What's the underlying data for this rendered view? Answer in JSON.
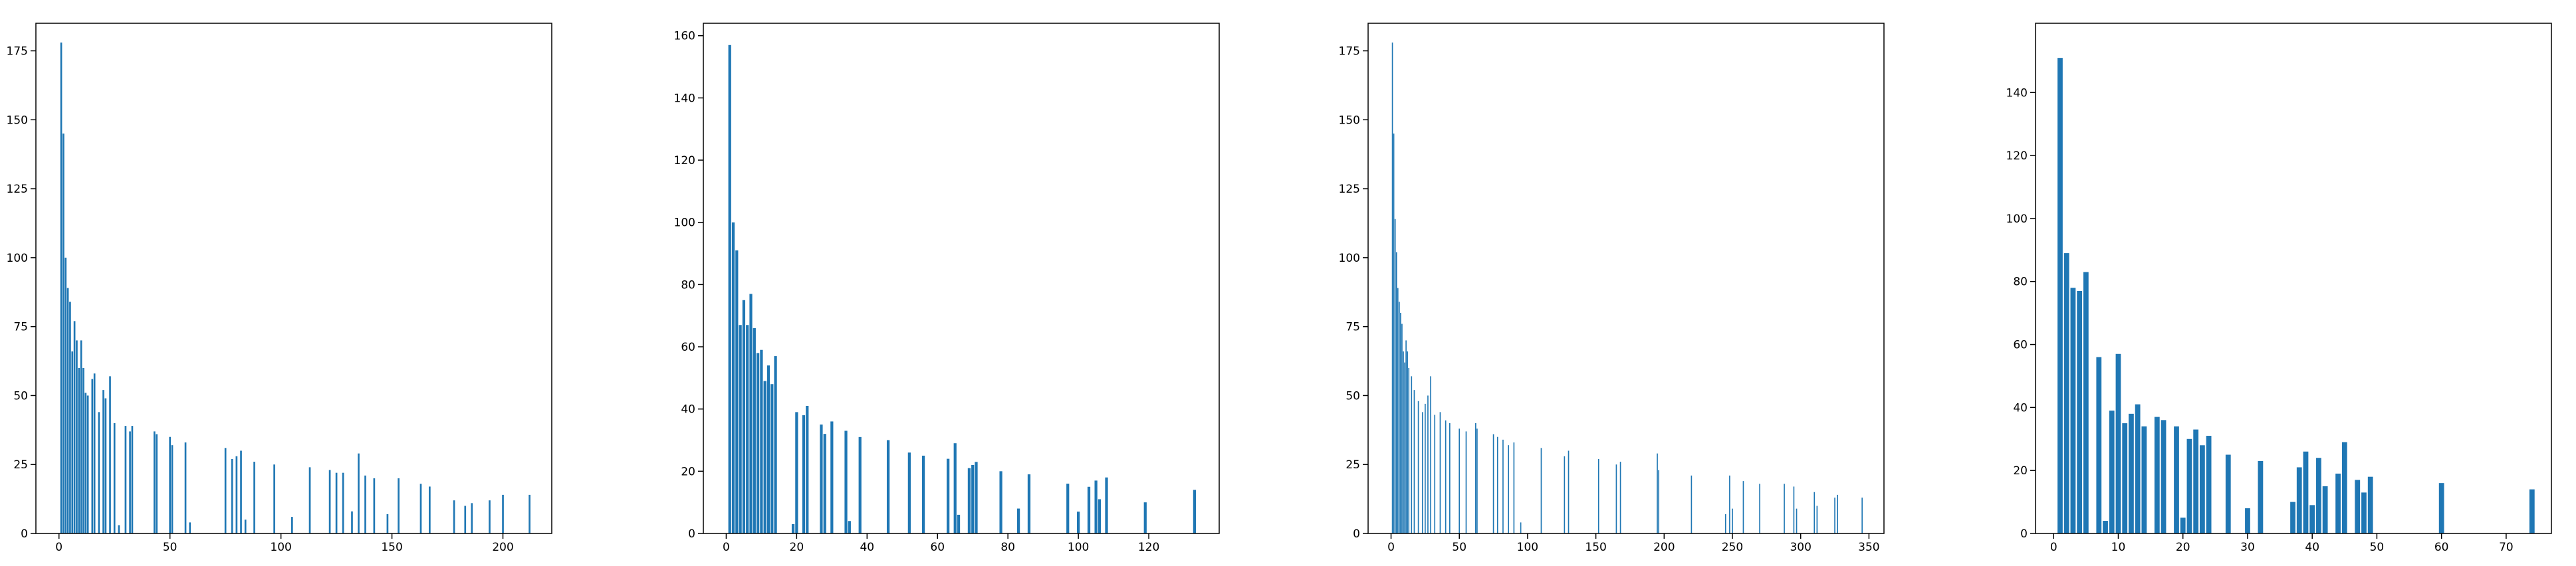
{
  "chart_data": [
    {
      "type": "bar",
      "color": "#1f77b4",
      "x": [
        1,
        2,
        3,
        4,
        5,
        6,
        7,
        8,
        9,
        10,
        11,
        12,
        13,
        15,
        16,
        18,
        20,
        21,
        23,
        25,
        27,
        30,
        32,
        33,
        43,
        44,
        50,
        51,
        57,
        59,
        75,
        78,
        80,
        82,
        84,
        88,
        97,
        105,
        113,
        122,
        125,
        128,
        132,
        135,
        138,
        142,
        148,
        153,
        163,
        167,
        178,
        183,
        186,
        194,
        200,
        212
      ],
      "values": [
        178,
        145,
        100,
        89,
        84,
        66,
        77,
        70,
        60,
        70,
        60,
        51,
        50,
        56,
        58,
        44,
        52,
        49,
        57,
        40,
        3,
        39,
        37,
        39,
        37,
        36,
        35,
        32,
        33,
        4,
        31,
        27,
        28,
        30,
        5,
        26,
        25,
        6,
        24,
        23,
        22,
        22,
        8,
        29,
        21,
        20,
        7,
        20,
        18,
        17,
        12,
        10,
        11,
        12,
        14,
        14
      ],
      "xlim": [
        -10.4,
        222
      ],
      "ylim": [
        0,
        185
      ],
      "xticks": [
        0,
        50,
        100,
        150,
        200
      ],
      "yticks": [
        0,
        25,
        50,
        75,
        100,
        125,
        150,
        175
      ]
    },
    {
      "type": "bar",
      "color": "#1f77b4",
      "x": [
        1,
        2,
        3,
        4,
        5,
        6,
        7,
        8,
        9,
        10,
        11,
        12,
        13,
        14,
        19,
        20,
        22,
        23,
        27,
        28,
        30,
        34,
        35,
        38,
        46,
        52,
        56,
        63,
        65,
        66,
        69,
        70,
        71,
        78,
        83,
        86,
        97,
        100,
        103,
        105,
        106,
        108,
        119,
        133
      ],
      "values": [
        157,
        100,
        91,
        67,
        75,
        67,
        77,
        66,
        58,
        59,
        49,
        54,
        48,
        57,
        3,
        39,
        38,
        41,
        35,
        32,
        36,
        33,
        4,
        31,
        30,
        26,
        25,
        24,
        29,
        6,
        21,
        22,
        23,
        20,
        8,
        19,
        16,
        7,
        15,
        17,
        11,
        18,
        10,
        14
      ],
      "xlim": [
        -6.5,
        140
      ],
      "ylim": [
        0,
        164
      ],
      "xticks": [
        0,
        20,
        40,
        60,
        80,
        100,
        120
      ],
      "yticks": [
        0,
        20,
        40,
        60,
        80,
        100,
        120,
        140,
        160
      ]
    },
    {
      "type": "bar",
      "color": "#1f77b4",
      "x": [
        1,
        2,
        3,
        4,
        5,
        6,
        7,
        8,
        9,
        10,
        11,
        12,
        13,
        15,
        17,
        20,
        23,
        25,
        27,
        29,
        32,
        36,
        40,
        43,
        50,
        55,
        62,
        63,
        75,
        78,
        82,
        86,
        90,
        95,
        110,
        127,
        130,
        152,
        165,
        168,
        195,
        196,
        220,
        245,
        248,
        250,
        258,
        270,
        288,
        295,
        297,
        310,
        312,
        325,
        327,
        345
      ],
      "values": [
        178,
        145,
        114,
        102,
        89,
        84,
        80,
        76,
        66,
        62,
        70,
        66,
        60,
        57,
        52,
        48,
        44,
        47,
        50,
        57,
        43,
        44,
        41,
        40,
        38,
        37,
        40,
        38,
        36,
        35,
        34,
        32,
        33,
        4,
        31,
        28,
        30,
        27,
        25,
        26,
        29,
        23,
        21,
        7,
        21,
        9,
        19,
        18,
        18,
        17,
        9,
        15,
        10,
        13,
        14,
        13
      ],
      "xlim": [
        -16.8,
        361
      ],
      "ylim": [
        0,
        185
      ],
      "xticks": [
        0,
        50,
        100,
        150,
        200,
        250,
        300,
        350
      ],
      "yticks": [
        0,
        25,
        50,
        75,
        100,
        125,
        150,
        175
      ]
    },
    {
      "type": "bar",
      "color": "#1f77b4",
      "x": [
        1,
        2,
        3,
        4,
        5,
        7,
        8,
        9,
        10,
        11,
        12,
        13,
        14,
        16,
        17,
        19,
        20,
        21,
        22,
        23,
        24,
        27,
        30,
        32,
        37,
        38,
        39,
        40,
        41,
        42,
        44,
        45,
        47,
        48,
        49,
        60,
        74
      ],
      "values": [
        151,
        89,
        78,
        77,
        83,
        56,
        4,
        39,
        57,
        35,
        38,
        41,
        34,
        37,
        36,
        34,
        5,
        30,
        33,
        28,
        31,
        25,
        8,
        23,
        10,
        21,
        26,
        9,
        24,
        15,
        19,
        29,
        17,
        13,
        18,
        16,
        14
      ],
      "xlim": [
        -2.8,
        77
      ],
      "ylim": [
        0,
        162
      ],
      "xticks": [
        0,
        10,
        20,
        30,
        40,
        50,
        60,
        70
      ],
      "yticks": [
        0,
        20,
        40,
        60,
        80,
        100,
        120,
        140
      ]
    }
  ]
}
